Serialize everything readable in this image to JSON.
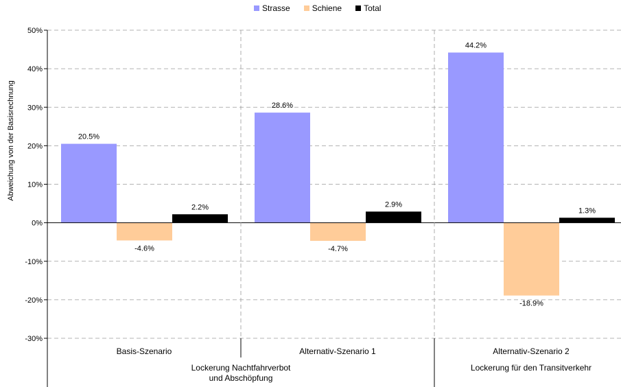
{
  "chart_data": {
    "type": "bar",
    "ylabel": "Abweichung von der Basisrechnung",
    "ylim": [
      -30,
      50
    ],
    "yticks": [
      "-30%",
      "-20%",
      "-10%",
      "0%",
      "10%",
      "20%",
      "30%",
      "40%",
      "50%"
    ],
    "grid": true,
    "legend_position": "top",
    "categories": [
      "Basis-Szenario",
      "Alternativ-Szenario 1",
      "Alternativ-Szenario 2"
    ],
    "groups": [
      {
        "label": "Lockerung Nachtfahrverbot\nund Abschöpfung",
        "span": [
          0,
          1
        ]
      },
      {
        "label": "Lockerung für den Transitverkehr",
        "span": [
          2,
          2
        ]
      }
    ],
    "series": [
      {
        "name": "Strasse",
        "color": "#9999ff",
        "values": [
          20.5,
          28.6,
          44.2
        ],
        "labels": [
          "20.5%",
          "28.6%",
          "44.2%"
        ]
      },
      {
        "name": "Schiene",
        "color": "#ffcc99",
        "values": [
          -4.6,
          -4.7,
          -18.9
        ],
        "labels": [
          "-4.6%",
          "-4.7%",
          "-18.9%"
        ]
      },
      {
        "name": "Total",
        "color": "#000000",
        "values": [
          2.2,
          2.9,
          1.3
        ],
        "labels": [
          "2.2%",
          "2.9%",
          "1.3%"
        ]
      }
    ]
  }
}
